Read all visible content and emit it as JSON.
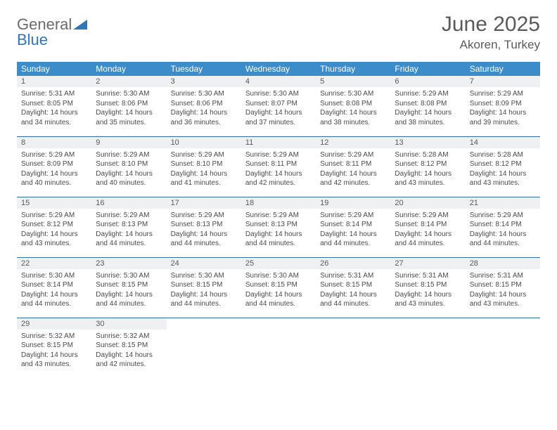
{
  "logo": {
    "word1": "General",
    "word2": "Blue"
  },
  "title": "June 2025",
  "location": "Akoren, Turkey",
  "colors": {
    "header_bg": "#3c8cc9",
    "header_text": "#ffffff",
    "daynum_bg": "#eef0f1",
    "text": "#5a5a5a",
    "rule": "#2f6fa3",
    "logo_gray": "#6b6b6b",
    "logo_blue": "#2f77b6"
  },
  "day_headers": [
    "Sunday",
    "Monday",
    "Tuesday",
    "Wednesday",
    "Thursday",
    "Friday",
    "Saturday"
  ],
  "weeks": [
    [
      {
        "n": "1",
        "sr": "Sunrise: 5:31 AM",
        "ss": "Sunset: 8:05 PM",
        "d1": "Daylight: 14 hours",
        "d2": "and 34 minutes."
      },
      {
        "n": "2",
        "sr": "Sunrise: 5:30 AM",
        "ss": "Sunset: 8:06 PM",
        "d1": "Daylight: 14 hours",
        "d2": "and 35 minutes."
      },
      {
        "n": "3",
        "sr": "Sunrise: 5:30 AM",
        "ss": "Sunset: 8:06 PM",
        "d1": "Daylight: 14 hours",
        "d2": "and 36 minutes."
      },
      {
        "n": "4",
        "sr": "Sunrise: 5:30 AM",
        "ss": "Sunset: 8:07 PM",
        "d1": "Daylight: 14 hours",
        "d2": "and 37 minutes."
      },
      {
        "n": "5",
        "sr": "Sunrise: 5:30 AM",
        "ss": "Sunset: 8:08 PM",
        "d1": "Daylight: 14 hours",
        "d2": "and 38 minutes."
      },
      {
        "n": "6",
        "sr": "Sunrise: 5:29 AM",
        "ss": "Sunset: 8:08 PM",
        "d1": "Daylight: 14 hours",
        "d2": "and 38 minutes."
      },
      {
        "n": "7",
        "sr": "Sunrise: 5:29 AM",
        "ss": "Sunset: 8:09 PM",
        "d1": "Daylight: 14 hours",
        "d2": "and 39 minutes."
      }
    ],
    [
      {
        "n": "8",
        "sr": "Sunrise: 5:29 AM",
        "ss": "Sunset: 8:09 PM",
        "d1": "Daylight: 14 hours",
        "d2": "and 40 minutes."
      },
      {
        "n": "9",
        "sr": "Sunrise: 5:29 AM",
        "ss": "Sunset: 8:10 PM",
        "d1": "Daylight: 14 hours",
        "d2": "and 40 minutes."
      },
      {
        "n": "10",
        "sr": "Sunrise: 5:29 AM",
        "ss": "Sunset: 8:10 PM",
        "d1": "Daylight: 14 hours",
        "d2": "and 41 minutes."
      },
      {
        "n": "11",
        "sr": "Sunrise: 5:29 AM",
        "ss": "Sunset: 8:11 PM",
        "d1": "Daylight: 14 hours",
        "d2": "and 42 minutes."
      },
      {
        "n": "12",
        "sr": "Sunrise: 5:29 AM",
        "ss": "Sunset: 8:11 PM",
        "d1": "Daylight: 14 hours",
        "d2": "and 42 minutes."
      },
      {
        "n": "13",
        "sr": "Sunrise: 5:28 AM",
        "ss": "Sunset: 8:12 PM",
        "d1": "Daylight: 14 hours",
        "d2": "and 43 minutes."
      },
      {
        "n": "14",
        "sr": "Sunrise: 5:28 AM",
        "ss": "Sunset: 8:12 PM",
        "d1": "Daylight: 14 hours",
        "d2": "and 43 minutes."
      }
    ],
    [
      {
        "n": "15",
        "sr": "Sunrise: 5:29 AM",
        "ss": "Sunset: 8:12 PM",
        "d1": "Daylight: 14 hours",
        "d2": "and 43 minutes."
      },
      {
        "n": "16",
        "sr": "Sunrise: 5:29 AM",
        "ss": "Sunset: 8:13 PM",
        "d1": "Daylight: 14 hours",
        "d2": "and 44 minutes."
      },
      {
        "n": "17",
        "sr": "Sunrise: 5:29 AM",
        "ss": "Sunset: 8:13 PM",
        "d1": "Daylight: 14 hours",
        "d2": "and 44 minutes."
      },
      {
        "n": "18",
        "sr": "Sunrise: 5:29 AM",
        "ss": "Sunset: 8:13 PM",
        "d1": "Daylight: 14 hours",
        "d2": "and 44 minutes."
      },
      {
        "n": "19",
        "sr": "Sunrise: 5:29 AM",
        "ss": "Sunset: 8:14 PM",
        "d1": "Daylight: 14 hours",
        "d2": "and 44 minutes."
      },
      {
        "n": "20",
        "sr": "Sunrise: 5:29 AM",
        "ss": "Sunset: 8:14 PM",
        "d1": "Daylight: 14 hours",
        "d2": "and 44 minutes."
      },
      {
        "n": "21",
        "sr": "Sunrise: 5:29 AM",
        "ss": "Sunset: 8:14 PM",
        "d1": "Daylight: 14 hours",
        "d2": "and 44 minutes."
      }
    ],
    [
      {
        "n": "22",
        "sr": "Sunrise: 5:30 AM",
        "ss": "Sunset: 8:14 PM",
        "d1": "Daylight: 14 hours",
        "d2": "and 44 minutes."
      },
      {
        "n": "23",
        "sr": "Sunrise: 5:30 AM",
        "ss": "Sunset: 8:15 PM",
        "d1": "Daylight: 14 hours",
        "d2": "and 44 minutes."
      },
      {
        "n": "24",
        "sr": "Sunrise: 5:30 AM",
        "ss": "Sunset: 8:15 PM",
        "d1": "Daylight: 14 hours",
        "d2": "and 44 minutes."
      },
      {
        "n": "25",
        "sr": "Sunrise: 5:30 AM",
        "ss": "Sunset: 8:15 PM",
        "d1": "Daylight: 14 hours",
        "d2": "and 44 minutes."
      },
      {
        "n": "26",
        "sr": "Sunrise: 5:31 AM",
        "ss": "Sunset: 8:15 PM",
        "d1": "Daylight: 14 hours",
        "d2": "and 44 minutes."
      },
      {
        "n": "27",
        "sr": "Sunrise: 5:31 AM",
        "ss": "Sunset: 8:15 PM",
        "d1": "Daylight: 14 hours",
        "d2": "and 43 minutes."
      },
      {
        "n": "28",
        "sr": "Sunrise: 5:31 AM",
        "ss": "Sunset: 8:15 PM",
        "d1": "Daylight: 14 hours",
        "d2": "and 43 minutes."
      }
    ],
    [
      {
        "n": "29",
        "sr": "Sunrise: 5:32 AM",
        "ss": "Sunset: 8:15 PM",
        "d1": "Daylight: 14 hours",
        "d2": "and 43 minutes."
      },
      {
        "n": "30",
        "sr": "Sunrise: 5:32 AM",
        "ss": "Sunset: 8:15 PM",
        "d1": "Daylight: 14 hours",
        "d2": "and 42 minutes."
      },
      {
        "empty": true
      },
      {
        "empty": true
      },
      {
        "empty": true
      },
      {
        "empty": true
      },
      {
        "empty": true
      }
    ]
  ]
}
